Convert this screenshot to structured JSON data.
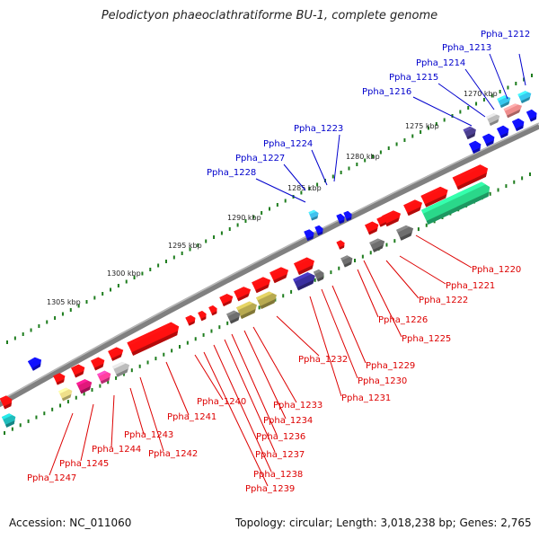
{
  "title": "Pelodictyon phaeoclathratiforme BU-1, complete genome",
  "footer": {
    "accession": "Accession: NC_011060",
    "summary": "Topology: circular; Length: 3,018,238 bp; Genes: 2,765"
  },
  "colors": {
    "backbone": "#808080",
    "forward_label": "#0000cc",
    "reverse_label": "#dd0000",
    "tick": "#1e7d1e"
  },
  "kbp_labels": [
    "1270 kbp",
    "1275 kbp",
    "1280 kbp",
    "1285 kbp",
    "1290 kbp",
    "1295 kbp",
    "1300 kbp",
    "1305 kbp"
  ],
  "forward_genes": [
    "Ppha_1212",
    "Ppha_1213",
    "Ppha_1214",
    "Ppha_1215",
    "Ppha_1216",
    "Ppha_1223",
    "Ppha_1224",
    "Ppha_1227",
    "Ppha_1228"
  ],
  "reverse_genes": [
    "Ppha_1220",
    "Ppha_1221",
    "Ppha_1222",
    "Ppha_1226",
    "Ppha_1225",
    "Ppha_1229",
    "Ppha_1230",
    "Ppha_1231",
    "Ppha_1232",
    "Ppha_1233",
    "Ppha_1234",
    "Ppha_1236",
    "Ppha_1237",
    "Ppha_1238",
    "Ppha_1239",
    "Ppha_1240",
    "Ppha_1241",
    "Ppha_1242",
    "Ppha_1243",
    "Ppha_1244",
    "Ppha_1245",
    "Ppha_1247"
  ]
}
